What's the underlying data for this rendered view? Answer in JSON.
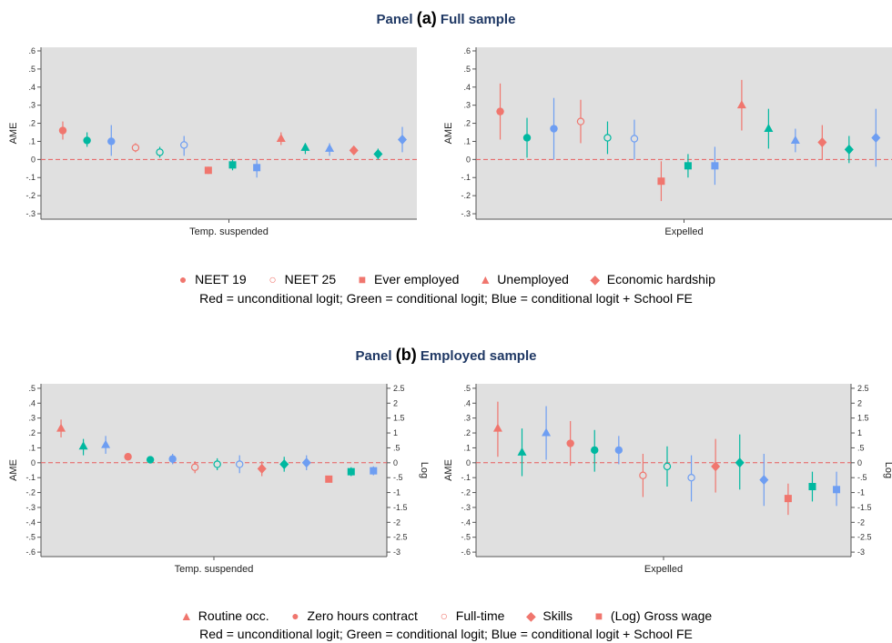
{
  "colors": {
    "red": "#f0766e",
    "green": "#00b8a0",
    "blue": "#6e9ef2",
    "zero_line": "#e85c5c",
    "panel_bg": "#e0e0e0"
  },
  "panel_a": {
    "label_prefix": "Panel",
    "label_letter": "(a)",
    "label_rest": "Full sample",
    "legend": [
      {
        "symbol": "filled-circle",
        "label": "NEET 19"
      },
      {
        "symbol": "hollow-circle",
        "label": "NEET 25"
      },
      {
        "symbol": "square",
        "label": "Ever employed"
      },
      {
        "symbol": "triangle",
        "label": "Unemployed"
      },
      {
        "symbol": "diamond",
        "label": "Economic hardship"
      }
    ],
    "note": "Red = unconditional logit; Green = conditional logit; Blue = conditional logit + School FE"
  },
  "panel_b": {
    "label_prefix": "Panel",
    "label_letter": "(b)",
    "label_rest": "Employed sample",
    "legend": [
      {
        "symbol": "triangle",
        "label": "Routine occ."
      },
      {
        "symbol": "filled-circle",
        "label": "Zero hours contract"
      },
      {
        "symbol": "hollow-circle",
        "label": "Full-time"
      },
      {
        "symbol": "diamond",
        "label": "Skills"
      },
      {
        "symbol": "square",
        "label": "(Log) Gross wage"
      }
    ],
    "note": "Red = unconditional logit; Green = conditional logit; Blue = conditional logit + School FE"
  },
  "chart_data": [
    {
      "type": "scatter",
      "subtype": "coefficient-plot",
      "panel": "a",
      "xlabel": "Temp. suspended",
      "ylabel": "AME",
      "ylim": [
        -0.33,
        0.62
      ],
      "yticks": [
        ".6",
        ".5",
        ".4",
        ".3",
        ".2",
        ".1",
        "0",
        "-.1",
        "-.2",
        "-.3"
      ],
      "ytick_values": [
        0.6,
        0.5,
        0.4,
        0.3,
        0.2,
        0.1,
        0,
        -0.1,
        -0.2,
        -0.3
      ],
      "points": [
        {
          "outcome": "NEET 19",
          "model": "unconditional logit",
          "shape": "circle",
          "filled": true,
          "color": "red",
          "est": 0.16,
          "lo": 0.11,
          "hi": 0.21
        },
        {
          "outcome": "NEET 19",
          "model": "conditional logit",
          "shape": "circle",
          "filled": true,
          "color": "green",
          "est": 0.105,
          "lo": 0.07,
          "hi": 0.15
        },
        {
          "outcome": "NEET 19",
          "model": "conditional logit + School FE",
          "shape": "circle",
          "filled": true,
          "color": "blue",
          "est": 0.1,
          "lo": 0.02,
          "hi": 0.19
        },
        {
          "outcome": "NEET 25",
          "model": "unconditional logit",
          "shape": "circle",
          "filled": false,
          "color": "red",
          "est": 0.065,
          "lo": 0.04,
          "hi": 0.09
        },
        {
          "outcome": "NEET 25",
          "model": "conditional logit",
          "shape": "circle",
          "filled": false,
          "color": "green",
          "est": 0.04,
          "lo": 0.01,
          "hi": 0.07
        },
        {
          "outcome": "NEET 25",
          "model": "conditional logit + School FE",
          "shape": "circle",
          "filled": false,
          "color": "blue",
          "est": 0.08,
          "lo": 0.02,
          "hi": 0.13
        },
        {
          "outcome": "Ever employed",
          "model": "unconditional logit",
          "shape": "square",
          "filled": true,
          "color": "red",
          "est": -0.06,
          "lo": -0.08,
          "hi": -0.04
        },
        {
          "outcome": "Ever employed",
          "model": "conditional logit",
          "shape": "square",
          "filled": true,
          "color": "green",
          "est": -0.03,
          "lo": -0.06,
          "hi": 0.0
        },
        {
          "outcome": "Ever employed",
          "model": "conditional logit + School FE",
          "shape": "square",
          "filled": true,
          "color": "blue",
          "est": -0.045,
          "lo": -0.1,
          "hi": 0.0
        },
        {
          "outcome": "Unemployed",
          "model": "unconditional logit",
          "shape": "triangle",
          "filled": true,
          "color": "red",
          "est": 0.115,
          "lo": 0.08,
          "hi": 0.15
        },
        {
          "outcome": "Unemployed",
          "model": "conditional logit",
          "shape": "triangle",
          "filled": true,
          "color": "green",
          "est": 0.065,
          "lo": 0.03,
          "hi": 0.09
        },
        {
          "outcome": "Unemployed",
          "model": "conditional logit + School FE",
          "shape": "triangle",
          "filled": true,
          "color": "blue",
          "est": 0.06,
          "lo": 0.02,
          "hi": 0.09
        },
        {
          "outcome": "Economic hardship",
          "model": "unconditional logit",
          "shape": "diamond",
          "filled": true,
          "color": "red",
          "est": 0.05,
          "lo": 0.03,
          "hi": 0.07
        },
        {
          "outcome": "Economic hardship",
          "model": "conditional logit",
          "shape": "diamond",
          "filled": true,
          "color": "green",
          "est": 0.03,
          "lo": 0.0,
          "hi": 0.06
        },
        {
          "outcome": "Economic hardship",
          "model": "conditional logit + School FE",
          "shape": "diamond",
          "filled": true,
          "color": "blue",
          "est": 0.11,
          "lo": 0.04,
          "hi": 0.18
        }
      ]
    },
    {
      "type": "scatter",
      "subtype": "coefficient-plot",
      "panel": "a",
      "xlabel": "Expelled",
      "ylabel": "AME",
      "ylim": [
        -0.33,
        0.62
      ],
      "yticks": [
        ".6",
        ".5",
        ".4",
        ".3",
        ".2",
        ".1",
        "0",
        "-.1",
        "-.2",
        "-.3"
      ],
      "ytick_values": [
        0.6,
        0.5,
        0.4,
        0.3,
        0.2,
        0.1,
        0,
        -0.1,
        -0.2,
        -0.3
      ],
      "points": [
        {
          "outcome": "NEET 19",
          "model": "unconditional logit",
          "shape": "circle",
          "filled": true,
          "color": "red",
          "est": 0.265,
          "lo": 0.11,
          "hi": 0.42
        },
        {
          "outcome": "NEET 19",
          "model": "conditional logit",
          "shape": "circle",
          "filled": true,
          "color": "green",
          "est": 0.12,
          "lo": 0.01,
          "hi": 0.23
        },
        {
          "outcome": "NEET 19",
          "model": "conditional logit + School FE",
          "shape": "circle",
          "filled": true,
          "color": "blue",
          "est": 0.17,
          "lo": 0.0,
          "hi": 0.34
        },
        {
          "outcome": "NEET 25",
          "model": "unconditional logit",
          "shape": "circle",
          "filled": false,
          "color": "red",
          "est": 0.21,
          "lo": 0.09,
          "hi": 0.33
        },
        {
          "outcome": "NEET 25",
          "model": "conditional logit",
          "shape": "circle",
          "filled": false,
          "color": "green",
          "est": 0.12,
          "lo": 0.03,
          "hi": 0.21
        },
        {
          "outcome": "NEET 25",
          "model": "conditional logit + School FE",
          "shape": "circle",
          "filled": false,
          "color": "blue",
          "est": 0.115,
          "lo": 0.0,
          "hi": 0.22
        },
        {
          "outcome": "Ever employed",
          "model": "unconditional logit",
          "shape": "square",
          "filled": true,
          "color": "red",
          "est": -0.12,
          "lo": -0.23,
          "hi": -0.01
        },
        {
          "outcome": "Ever employed",
          "model": "conditional logit",
          "shape": "square",
          "filled": true,
          "color": "green",
          "est": -0.035,
          "lo": -0.1,
          "hi": 0.03
        },
        {
          "outcome": "Ever employed",
          "model": "conditional logit + School FE",
          "shape": "square",
          "filled": true,
          "color": "blue",
          "est": -0.035,
          "lo": -0.14,
          "hi": 0.07
        },
        {
          "outcome": "Unemployed",
          "model": "unconditional logit",
          "shape": "triangle",
          "filled": true,
          "color": "red",
          "est": 0.3,
          "lo": 0.16,
          "hi": 0.44
        },
        {
          "outcome": "Unemployed",
          "model": "conditional logit",
          "shape": "triangle",
          "filled": true,
          "color": "green",
          "est": 0.17,
          "lo": 0.06,
          "hi": 0.28
        },
        {
          "outcome": "Unemployed",
          "model": "conditional logit + School FE",
          "shape": "triangle",
          "filled": true,
          "color": "blue",
          "est": 0.105,
          "lo": 0.04,
          "hi": 0.17
        },
        {
          "outcome": "Economic hardship",
          "model": "unconditional logit",
          "shape": "diamond",
          "filled": true,
          "color": "red",
          "est": 0.095,
          "lo": 0.0,
          "hi": 0.19
        },
        {
          "outcome": "Economic hardship",
          "model": "conditional logit",
          "shape": "diamond",
          "filled": true,
          "color": "green",
          "est": 0.055,
          "lo": -0.02,
          "hi": 0.13
        },
        {
          "outcome": "Economic hardship",
          "model": "conditional logit + School FE",
          "shape": "diamond",
          "filled": true,
          "color": "blue",
          "est": 0.12,
          "lo": -0.04,
          "hi": 0.28
        }
      ]
    },
    {
      "type": "scatter",
      "subtype": "coefficient-plot",
      "panel": "b",
      "xlabel": "Temp. suspended",
      "ylabel": "AME",
      "y2label": "Log",
      "ylim": [
        -0.63,
        0.53
      ],
      "y2lim": [
        -3.15,
        2.65
      ],
      "yticks": [
        ".5",
        ".4",
        ".3",
        ".2",
        ".1",
        "0",
        "-.1",
        "-.2",
        "-.3",
        "-.4",
        "-.5",
        "-.6"
      ],
      "ytick_values": [
        0.5,
        0.4,
        0.3,
        0.2,
        0.1,
        0,
        -0.1,
        -0.2,
        -0.3,
        -0.4,
        -0.5,
        -0.6
      ],
      "y2ticks": [
        "2.5",
        "2",
        "1.5",
        "1",
        ".5",
        "0",
        "-.5",
        "-1",
        "-1.5",
        "-2",
        "-2.5",
        "-3"
      ],
      "y2tick_values": [
        2.5,
        2,
        1.5,
        1,
        0.5,
        0,
        -0.5,
        -1,
        -1.5,
        -2,
        -2.5,
        -3
      ],
      "points": [
        {
          "outcome": "Routine occ.",
          "model": "unconditional logit",
          "shape": "triangle",
          "filled": true,
          "color": "red",
          "est": 0.23,
          "lo": 0.17,
          "hi": 0.29
        },
        {
          "outcome": "Routine occ.",
          "model": "conditional logit",
          "shape": "triangle",
          "filled": true,
          "color": "green",
          "est": 0.11,
          "lo": 0.05,
          "hi": 0.16
        },
        {
          "outcome": "Routine occ.",
          "model": "conditional logit + School FE",
          "shape": "triangle",
          "filled": true,
          "color": "blue",
          "est": 0.12,
          "lo": 0.06,
          "hi": 0.18
        },
        {
          "outcome": "Zero hours contract",
          "model": "unconditional logit",
          "shape": "circle",
          "filled": true,
          "color": "red",
          "est": 0.04,
          "lo": 0.02,
          "hi": 0.06
        },
        {
          "outcome": "Zero hours contract",
          "model": "conditional logit",
          "shape": "circle",
          "filled": true,
          "color": "green",
          "est": 0.02,
          "lo": 0.0,
          "hi": 0.04
        },
        {
          "outcome": "Zero hours contract",
          "model": "conditional logit + School FE",
          "shape": "circle",
          "filled": true,
          "color": "blue",
          "est": 0.025,
          "lo": -0.01,
          "hi": 0.06
        },
        {
          "outcome": "Full-time",
          "model": "unconditional logit",
          "shape": "circle",
          "filled": false,
          "color": "red",
          "est": -0.03,
          "lo": -0.07,
          "hi": 0.01
        },
        {
          "outcome": "Full-time",
          "model": "conditional logit",
          "shape": "circle",
          "filled": false,
          "color": "green",
          "est": -0.01,
          "lo": -0.05,
          "hi": 0.03
        },
        {
          "outcome": "Full-time",
          "model": "conditional logit + School FE",
          "shape": "circle",
          "filled": false,
          "color": "blue",
          "est": -0.01,
          "lo": -0.07,
          "hi": 0.05
        },
        {
          "outcome": "Skills",
          "model": "unconditional logit",
          "shape": "diamond",
          "filled": true,
          "color": "red",
          "est": -0.04,
          "lo": -0.09,
          "hi": 0.01
        },
        {
          "outcome": "Skills",
          "model": "conditional logit",
          "shape": "diamond",
          "filled": true,
          "color": "green",
          "est": -0.01,
          "lo": -0.06,
          "hi": 0.04
        },
        {
          "outcome": "Skills",
          "model": "conditional logit + School FE",
          "shape": "diamond",
          "filled": true,
          "color": "blue",
          "est": 0.0,
          "lo": -0.05,
          "hi": 0.05
        },
        {
          "outcome": "(Log) Gross wage",
          "model": "unconditional logit",
          "shape": "square",
          "filled": true,
          "color": "red",
          "axis": "right",
          "est": -0.55,
          "lo": -0.62,
          "hi": -0.48
        },
        {
          "outcome": "(Log) Gross wage",
          "model": "conditional logit",
          "shape": "square",
          "filled": true,
          "color": "green",
          "axis": "right",
          "est": -0.3,
          "lo": -0.45,
          "hi": -0.15
        },
        {
          "outcome": "(Log) Gross wage",
          "model": "conditional logit + School FE",
          "shape": "square",
          "filled": true,
          "color": "blue",
          "axis": "right",
          "est": -0.27,
          "lo": -0.42,
          "hi": -0.12
        }
      ]
    },
    {
      "type": "scatter",
      "subtype": "coefficient-plot",
      "panel": "b",
      "xlabel": "Expelled",
      "ylabel": "AME",
      "y2label": "Log",
      "ylim": [
        -0.63,
        0.53
      ],
      "y2lim": [
        -3.15,
        2.65
      ],
      "yticks": [
        ".5",
        ".4",
        ".3",
        ".2",
        ".1",
        "0",
        "-.1",
        "-.2",
        "-.3",
        "-.4",
        "-.5",
        "-.6"
      ],
      "ytick_values": [
        0.5,
        0.4,
        0.3,
        0.2,
        0.1,
        0,
        -0.1,
        -0.2,
        -0.3,
        -0.4,
        -0.5,
        -0.6
      ],
      "y2ticks": [
        "2.5",
        "2",
        "1.5",
        "1",
        ".5",
        "0",
        "-.5",
        "-1",
        "-1.5",
        "-2",
        "-2.5",
        "-3"
      ],
      "y2tick_values": [
        2.5,
        2,
        1.5,
        1,
        0.5,
        0,
        -0.5,
        -1,
        -1.5,
        -2,
        -2.5,
        -3
      ],
      "points": [
        {
          "outcome": "Routine occ.",
          "model": "unconditional logit",
          "shape": "triangle",
          "filled": true,
          "color": "red",
          "est": 0.23,
          "lo": 0.04,
          "hi": 0.41
        },
        {
          "outcome": "Routine occ.",
          "model": "conditional logit",
          "shape": "triangle",
          "filled": true,
          "color": "green",
          "est": 0.07,
          "lo": -0.09,
          "hi": 0.23
        },
        {
          "outcome": "Routine occ.",
          "model": "conditional logit + School FE",
          "shape": "triangle",
          "filled": true,
          "color": "blue",
          "est": 0.2,
          "lo": 0.02,
          "hi": 0.38
        },
        {
          "outcome": "Zero hours contract",
          "model": "unconditional logit",
          "shape": "circle",
          "filled": true,
          "color": "red",
          "est": 0.13,
          "lo": -0.02,
          "hi": 0.28
        },
        {
          "outcome": "Zero hours contract",
          "model": "conditional logit",
          "shape": "circle",
          "filled": true,
          "color": "green",
          "est": 0.085,
          "lo": -0.06,
          "hi": 0.22
        },
        {
          "outcome": "Zero hours contract",
          "model": "conditional logit + School FE",
          "shape": "circle",
          "filled": true,
          "color": "blue",
          "est": 0.085,
          "lo": -0.01,
          "hi": 0.18
        },
        {
          "outcome": "Full-time",
          "model": "unconditional logit",
          "shape": "circle",
          "filled": false,
          "color": "red",
          "est": -0.085,
          "lo": -0.23,
          "hi": 0.06
        },
        {
          "outcome": "Full-time",
          "model": "conditional logit",
          "shape": "circle",
          "filled": false,
          "color": "green",
          "est": -0.025,
          "lo": -0.16,
          "hi": 0.11
        },
        {
          "outcome": "Full-time",
          "model": "conditional logit + School FE",
          "shape": "circle",
          "filled": false,
          "color": "blue",
          "est": -0.1,
          "lo": -0.26,
          "hi": 0.05
        },
        {
          "outcome": "Skills",
          "model": "unconditional logit",
          "shape": "diamond",
          "filled": true,
          "color": "red",
          "est": -0.025,
          "lo": -0.2,
          "hi": 0.16
        },
        {
          "outcome": "Skills",
          "model": "conditional logit",
          "shape": "diamond",
          "filled": true,
          "color": "green",
          "est": 0.0,
          "lo": -0.18,
          "hi": 0.19
        },
        {
          "outcome": "Skills",
          "model": "conditional logit + School FE",
          "shape": "diamond",
          "filled": true,
          "color": "blue",
          "est": -0.115,
          "lo": -0.29,
          "hi": 0.06
        },
        {
          "outcome": "(Log) Gross wage",
          "model": "unconditional logit",
          "shape": "square",
          "filled": true,
          "color": "red",
          "axis": "right",
          "est": -1.2,
          "lo": -1.75,
          "hi": -0.7
        },
        {
          "outcome": "(Log) Gross wage",
          "model": "conditional logit",
          "shape": "square",
          "filled": true,
          "color": "green",
          "axis": "right",
          "est": -0.8,
          "lo": -1.3,
          "hi": -0.3
        },
        {
          "outcome": "(Log) Gross wage",
          "model": "conditional logit + School FE",
          "shape": "square",
          "filled": true,
          "color": "blue",
          "axis": "right",
          "est": -0.9,
          "lo": -1.45,
          "hi": -0.3
        }
      ]
    }
  ]
}
